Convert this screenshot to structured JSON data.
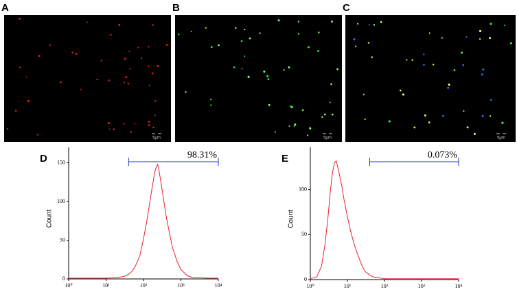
{
  "panels": [
    {
      "label": "A",
      "scale": "5μm"
    },
    {
      "label": "B",
      "scale": "5μm"
    },
    {
      "label": "C",
      "scale": "5μm"
    }
  ],
  "chart_data": [
    {
      "type": "line",
      "panel": "D",
      "y_label": "Count",
      "color": "#e8202a",
      "log_x": true,
      "x": [
        1,
        3,
        10,
        20,
        30,
        40,
        50,
        60,
        80,
        100,
        120,
        140,
        160,
        180,
        200,
        220,
        240,
        260,
        300,
        350,
        400,
        500,
        600,
        800,
        1000,
        1500,
        2000,
        5000,
        10000
      ],
      "values": [
        1,
        1,
        1,
        2,
        3,
        6,
        10,
        16,
        30,
        52,
        72,
        92,
        110,
        125,
        138,
        145,
        148,
        140,
        122,
        100,
        82,
        58,
        40,
        22,
        12,
        4,
        2,
        1,
        1
      ],
      "xlim": [
        1,
        10000
      ],
      "xticks": [
        {
          "value": 1,
          "label": "10⁰"
        },
        {
          "value": 10,
          "label": "10¹"
        },
        {
          "value": 100,
          "label": "10²"
        },
        {
          "value": 1000,
          "label": "10³"
        },
        {
          "value": 10000,
          "label": "10⁴"
        }
      ],
      "ylim": [
        0,
        170
      ],
      "yticks": [
        0,
        50,
        100,
        150
      ],
      "gate": {
        "range": [
          40,
          10000
        ],
        "label": "98.31%",
        "color": "#2233cc"
      }
    },
    {
      "type": "line",
      "panel": "E",
      "y_label": "Count",
      "color": "#e8202a",
      "log_x": true,
      "x": [
        1,
        1.5,
        2,
        2.5,
        3,
        3.5,
        4,
        4.5,
        5,
        5.5,
        6,
        7,
        8,
        10,
        12,
        15,
        20,
        25,
        30,
        40,
        50,
        70,
        100,
        1000,
        10000
      ],
      "values": [
        1,
        3,
        15,
        40,
        70,
        100,
        120,
        130,
        132,
        125,
        118,
        105,
        90,
        70,
        55,
        40,
        25,
        15,
        9,
        5,
        3,
        2,
        1,
        1,
        1
      ],
      "xlim": [
        1,
        10000
      ],
      "xticks": [
        {
          "value": 1,
          "label": "10⁰"
        },
        {
          "value": 10,
          "label": "10¹"
        },
        {
          "value": 100,
          "label": "10²"
        },
        {
          "value": 1000,
          "label": "10³"
        },
        {
          "value": 10000,
          "label": "10⁴"
        }
      ],
      "ylim": [
        0,
        147
      ],
      "yticks": [
        0,
        50,
        100
      ],
      "gate": {
        "range": [
          40,
          10000
        ],
        "label": "0.073%",
        "color": "#2233cc"
      }
    }
  ]
}
